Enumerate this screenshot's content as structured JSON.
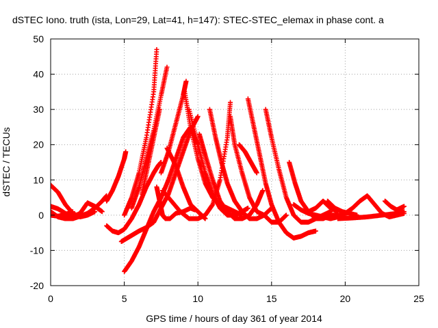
{
  "chart_data": {
    "type": "scatter",
    "title": "dSTEC Iono. truth (ista, Lon=29, Lat=41, h=147): STEC-STEC_elemax in phase cont. a",
    "xlabel": "GPS time / hours of day 361 of year 2014",
    "ylabel": "dSTEC  / TECUs",
    "xlim": [
      0,
      25
    ],
    "ylim": [
      -20,
      50
    ],
    "xticks": [
      0,
      5,
      10,
      15,
      20,
      25
    ],
    "yticks": [
      -20,
      -10,
      0,
      10,
      20,
      30,
      40,
      50
    ],
    "grid": true,
    "legend": "none",
    "marker": "+",
    "color": "#ff0000",
    "series": [
      {
        "x": [
          0,
          0.5,
          1,
          1.5,
          2,
          2.5,
          3,
          3.5,
          3.8
        ],
        "y": [
          1,
          -0.5,
          -1,
          -1,
          -0.3,
          0.5,
          2,
          4,
          5.5
        ]
      },
      {
        "x": [
          0,
          0.5,
          1,
          1.5,
          2,
          2.5,
          3
        ],
        "y": [
          8.5,
          6.5,
          3,
          0.5,
          -0.5,
          0,
          1
        ]
      },
      {
        "x": [
          0,
          0.5,
          1,
          1.5,
          2,
          2.5,
          3,
          3.5
        ],
        "y": [
          2.5,
          1.8,
          0.5,
          -0.5,
          0.5,
          3.5,
          2.5,
          1
        ]
      },
      {
        "x": [
          0,
          0.5,
          1,
          1.5
        ],
        "y": [
          0,
          -0.3,
          0.2,
          1
        ]
      },
      {
        "x": [
          3.8,
          4.2,
          4.6,
          5,
          5.5,
          6,
          6.5,
          7,
          7.3,
          7.5
        ],
        "y": [
          -3,
          -4.5,
          -5,
          -4,
          -1,
          3,
          8,
          12,
          14,
          15
        ]
      },
      {
        "x": [
          4.8,
          5.2,
          5.6,
          6,
          6.5,
          7,
          7.5,
          8,
          8.5,
          9,
          9.5,
          10
        ],
        "y": [
          -7.5,
          -6.5,
          -5.5,
          -4.5,
          -3.5,
          -2,
          2,
          6,
          12,
          18,
          24,
          28
        ]
      },
      {
        "x": [
          5,
          5.5,
          6,
          6.5,
          7,
          7.5,
          8,
          8.5,
          9,
          9.5,
          10
        ],
        "y": [
          -16,
          -13,
          -9,
          -4,
          1,
          5,
          10,
          16,
          22,
          25,
          20
        ]
      },
      {
        "x": [
          3.8,
          4.2,
          4.6,
          5,
          5.1
        ],
        "y": [
          4,
          7,
          11,
          16,
          18
        ]
      },
      {
        "x": [
          5,
          5.5,
          6,
          6.5,
          7,
          7.2
        ],
        "y": [
          0,
          5,
          12,
          22,
          35,
          47
        ]
      },
      {
        "x": [
          5.5,
          6,
          6.5,
          7,
          7.5,
          7.9
        ],
        "y": [
          2,
          8,
          16,
          24,
          34,
          42
        ]
      },
      {
        "x": [
          7.2,
          7.4,
          7.6,
          7.8,
          8.1,
          8.5,
          9,
          9.5,
          9.8
        ],
        "y": [
          8,
          4,
          0,
          -1,
          -1,
          0.5,
          1,
          2,
          1.5
        ]
      },
      {
        "x": [
          6.2,
          6.6,
          7,
          7.4
        ],
        "y": [
          6,
          14,
          22,
          30
        ]
      },
      {
        "x": [
          7.5,
          8,
          8.5,
          9,
          9.2
        ],
        "y": [
          12,
          18,
          26,
          34,
          38
        ]
      },
      {
        "x": [
          7.6,
          8.2,
          8.8,
          9.4,
          10,
          10.5,
          11,
          11.5,
          12,
          12.2
        ],
        "y": [
          7,
          4,
          1,
          -1,
          -1,
          0,
          3,
          10,
          22,
          32
        ]
      },
      {
        "x": [
          7.9,
          8.5,
          9,
          9.5,
          10,
          10.5
        ],
        "y": [
          19,
          14,
          8,
          3,
          1,
          -1
        ]
      },
      {
        "x": [
          9.1,
          9.5,
          10,
          10.5,
          11,
          11.5,
          12,
          12.5,
          13
        ],
        "y": [
          35,
          25,
          16,
          9,
          5,
          3,
          2,
          1,
          0
        ]
      },
      {
        "x": [
          9.4,
          10,
          10.5,
          11,
          11.5,
          12,
          12.5,
          13,
          13.4
        ],
        "y": [
          30,
          20,
          12,
          6,
          2,
          0,
          0,
          1,
          2
        ]
      },
      {
        "x": [
          10.1,
          10.5,
          11,
          11.5,
          12,
          12.5,
          13,
          13.5,
          14,
          14.4
        ],
        "y": [
          23,
          17,
          10,
          4,
          1,
          -1,
          -1,
          0,
          3,
          7
        ]
      },
      {
        "x": [
          10.8,
          11.2,
          11.6,
          12,
          12.5,
          13,
          13.5,
          14,
          14.5,
          15
        ],
        "y": [
          30,
          22,
          15,
          9,
          4,
          1,
          -1,
          -1,
          0,
          2
        ]
      },
      {
        "x": [
          12.2,
          12.5,
          13,
          13.5,
          14,
          14.5,
          15,
          15.5,
          16
        ],
        "y": [
          28,
          20,
          12,
          5,
          1,
          0,
          -2,
          -2,
          0
        ]
      },
      {
        "x": [
          13.4,
          13.8,
          14.2,
          14.6,
          15,
          15.5,
          16,
          16.5,
          17,
          17.5,
          18
        ],
        "y": [
          33,
          25,
          17,
          9,
          3,
          -2,
          -5,
          -6.5,
          -6,
          -5,
          -4.5
        ]
      },
      {
        "x": [
          12.8,
          13.2,
          13.6,
          14
        ],
        "y": [
          20,
          18,
          15,
          12
        ]
      },
      {
        "x": [
          14.6,
          15,
          15.5,
          16,
          16.5,
          17,
          17.5,
          18,
          18.5,
          19
        ],
        "y": [
          30,
          22,
          13,
          5,
          0,
          -2,
          -2,
          -1,
          0,
          1
        ]
      },
      {
        "x": [
          16.2,
          16.6,
          17,
          17.5,
          18,
          18.5,
          19,
          19.5,
          20
        ],
        "y": [
          15,
          9,
          4,
          1,
          -1,
          -1,
          0,
          0,
          0
        ]
      },
      {
        "x": [
          16.5,
          17,
          17.5,
          18,
          18.5,
          19,
          19.5,
          20,
          20.5,
          21,
          21.5
        ],
        "y": [
          3,
          1.5,
          0.5,
          0,
          -0.5,
          -1,
          -0.5,
          0.5,
          2,
          4,
          5.5
        ]
      },
      {
        "x": [
          17.5,
          18,
          18.5,
          19,
          19.5
        ],
        "y": [
          1,
          2,
          4,
          2,
          1
        ]
      },
      {
        "x": [
          18.8,
          19.3,
          19.8,
          20.3,
          20.8
        ],
        "y": [
          4,
          2,
          1,
          0.5,
          0
        ]
      },
      {
        "x": [
          21.5,
          22,
          22.5,
          23,
          23.5,
          24
        ],
        "y": [
          5.5,
          3,
          0.5,
          -0.5,
          0,
          0.5
        ]
      },
      {
        "x": [
          19.5,
          20.5,
          21.5,
          22.5,
          23.5,
          24
        ],
        "y": [
          -1,
          -0.8,
          -0.5,
          0,
          0.5,
          1
        ]
      },
      {
        "x": [
          22.7,
          23.1,
          23.5,
          24
        ],
        "y": [
          4,
          2.5,
          1.5,
          2.5
        ]
      }
    ]
  }
}
